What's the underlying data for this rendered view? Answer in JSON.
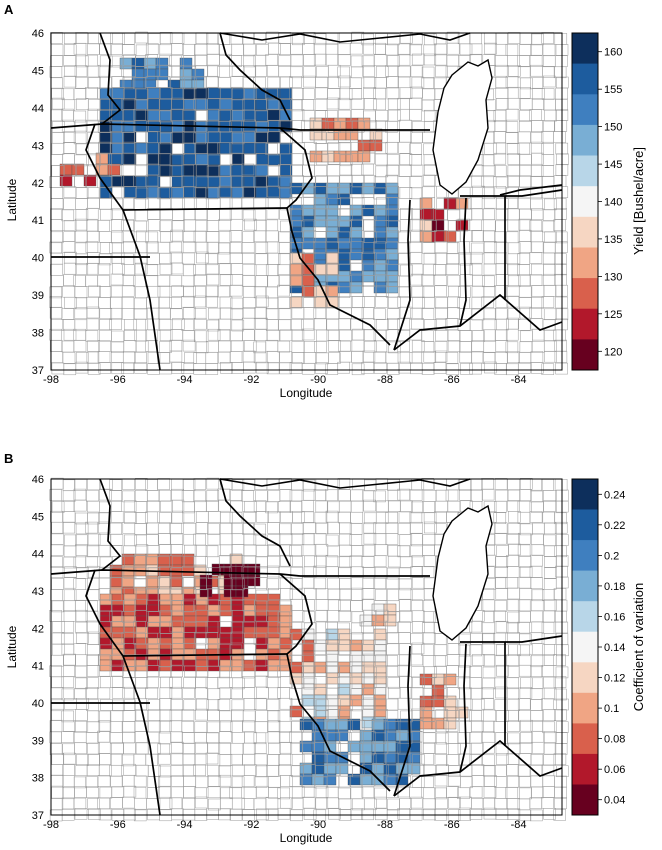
{
  "panels": [
    {
      "label": "A",
      "xlabel": "Longitude",
      "ylabel": "Latitude",
      "x_ticks": [
        "-98",
        "-96",
        "-94",
        "-92",
        "-90",
        "-88",
        "-86",
        "-84"
      ],
      "y_ticks": [
        "46",
        "45",
        "44",
        "43",
        "42",
        "41",
        "40",
        "39",
        "38",
        "37"
      ],
      "colorbar": {
        "title": "Yield [Bushel/acre]",
        "ticks": [
          "160",
          "155",
          "150",
          "145",
          "140",
          "135",
          "130",
          "125",
          "120"
        ],
        "colors": [
          "#0d2f5c",
          "#1d5c9e",
          "#3f7fbf",
          "#79aed4",
          "#b8d6e8",
          "#f5f5f5",
          "#f6d6c2",
          "#f0a584",
          "#d9604c",
          "#b2182b",
          "#67001f"
        ]
      }
    },
    {
      "label": "B",
      "xlabel": "Longitude",
      "ylabel": "Latitude",
      "x_ticks": [
        "-98",
        "-96",
        "-94",
        "-92",
        "-90",
        "-88",
        "-86",
        "-84"
      ],
      "y_ticks": [
        "46",
        "45",
        "44",
        "43",
        "42",
        "41",
        "40",
        "39",
        "38",
        "37"
      ],
      "colorbar": {
        "title": "Coefficient of variation",
        "ticks": [
          "0.24",
          "0.22",
          "0.2",
          "0.18",
          "0.16",
          "0.14",
          "0.12",
          "0.1",
          "0.08",
          "0.06",
          "0.04"
        ],
        "colors": [
          "#0d2f5c",
          "#1d5c9e",
          "#3f7fbf",
          "#79aed4",
          "#b8d6e8",
          "#f5f5f5",
          "#f6d6c2",
          "#f0a584",
          "#d9604c",
          "#b2182b",
          "#67001f"
        ]
      }
    }
  ]
}
